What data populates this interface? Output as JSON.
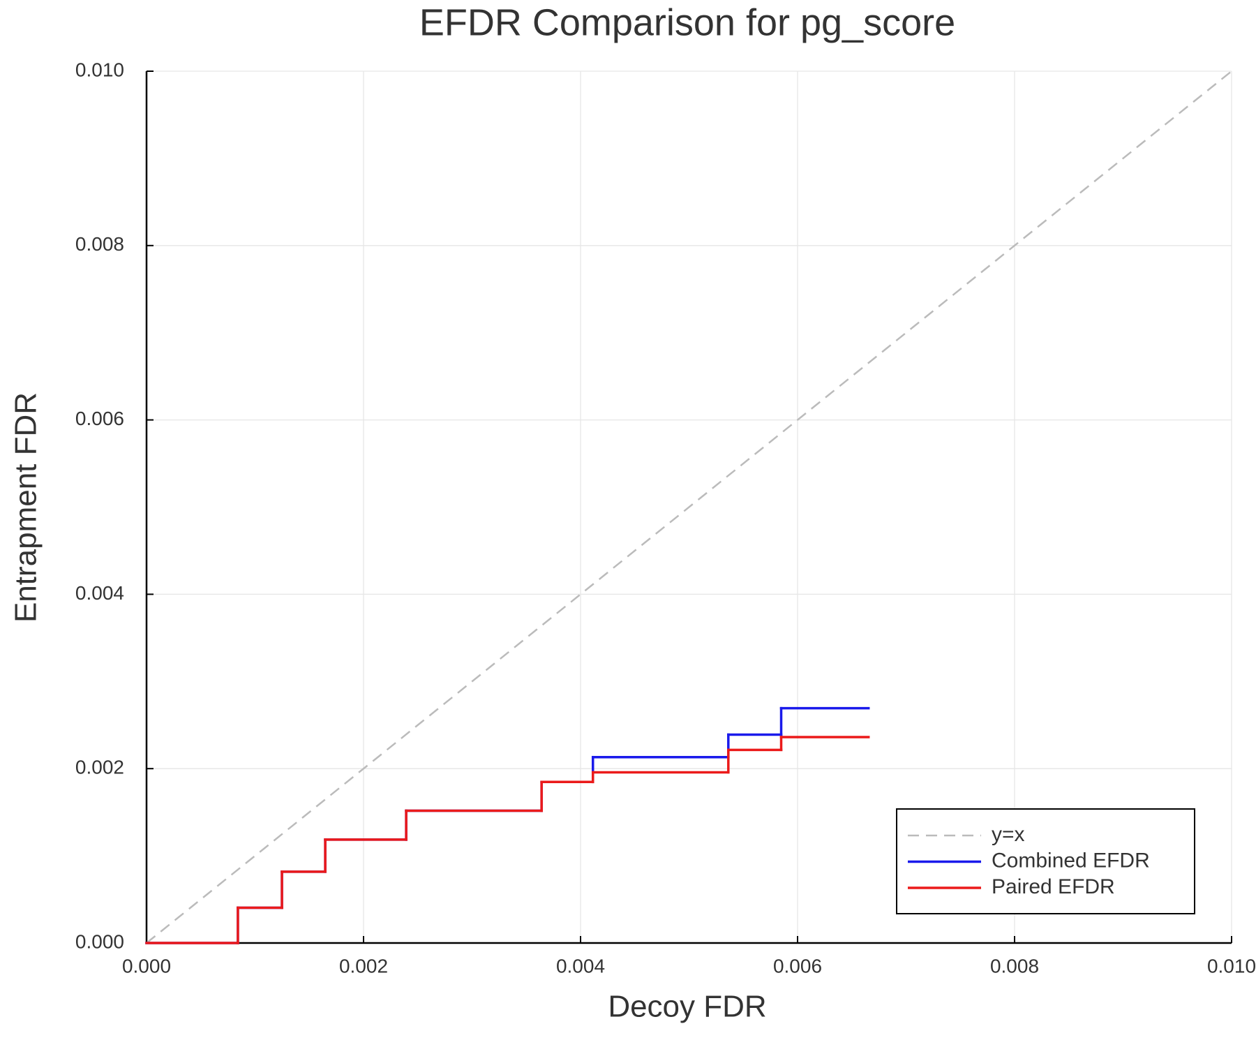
{
  "chart_data": {
    "type": "line",
    "title": "EFDR Comparison for pg_score",
    "x_label": "Decoy FDR",
    "y_label": "Entrapment FDR",
    "xlim": [
      0,
      0.01
    ],
    "ylim": [
      0,
      0.01
    ],
    "xticks": [
      {
        "value": 0,
        "label": "0.000"
      },
      {
        "value": 0.002,
        "label": "0.002"
      },
      {
        "value": 0.004,
        "label": "0.004"
      },
      {
        "value": 0.006,
        "label": "0.006"
      },
      {
        "value": 0.008,
        "label": "0.008"
      },
      {
        "value": 0.01,
        "label": "0.010"
      }
    ],
    "yticks": [
      {
        "value": 0,
        "label": "0.000"
      },
      {
        "value": 0.002,
        "label": "0.002"
      },
      {
        "value": 0.004,
        "label": "0.004"
      },
      {
        "value": 0.006,
        "label": "0.006"
      },
      {
        "value": 0.008,
        "label": "0.008"
      },
      {
        "value": 0.01,
        "label": "0.010"
      }
    ],
    "grid": true,
    "legend": "lower right",
    "series": [
      {
        "name": "y=x",
        "color": "#bbbbbb",
        "dash": true,
        "step": false,
        "x": [
          0,
          0.01
        ],
        "values": [
          0,
          0.01
        ]
      },
      {
        "name": "Combined EFDR",
        "color": "#1a1aeb",
        "dash": false,
        "step": true,
        "x": [
          0,
          0.000842,
          0.001248,
          0.001647,
          0.002393,
          0.003641,
          0.004114,
          0.005362,
          0.005849,
          0.006654
        ],
        "values": [
          0,
          0.000404,
          0.000818,
          0.001186,
          0.001517,
          0.001847,
          0.002132,
          0.00239,
          0.002693,
          0.002693
        ]
      },
      {
        "name": "Paired EFDR",
        "color": "#eb1a1a",
        "dash": false,
        "step": true,
        "x": [
          0,
          0.000842,
          0.001248,
          0.001647,
          0.002393,
          0.003641,
          0.004114,
          0.005362,
          0.005849,
          0.006654
        ],
        "values": [
          0,
          0.000404,
          0.000818,
          0.001186,
          0.001517,
          0.001847,
          0.001958,
          0.002215,
          0.002362,
          0.002362
        ]
      }
    ]
  }
}
